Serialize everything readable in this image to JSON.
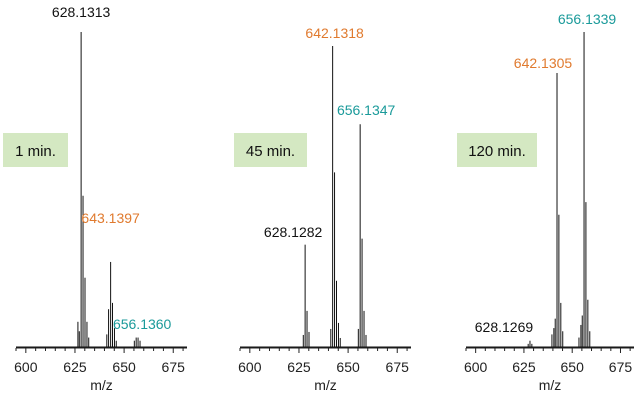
{
  "colors": {
    "spectrum": "#111111",
    "axis": "#222222",
    "peak_black": "#111111",
    "peak_orange": "#e07a2e",
    "peak_teal": "#1a9a9a",
    "time_box_fill": "#d4e8c2"
  },
  "chart_data": [
    {
      "type": "line",
      "time_label": "1 min.",
      "xlabel": "m/z",
      "xlim": [
        595,
        682
      ],
      "ylim": [
        0,
        1.0
      ],
      "xticks": [
        600,
        625,
        650,
        675
      ],
      "xtick_labels": [
        "600",
        "625",
        "650",
        "675"
      ],
      "peaks": [
        {
          "x": 626.5,
          "y": 0.08
        },
        {
          "x": 627.2,
          "y": 0.05
        },
        {
          "x": 628.13,
          "y": 1.0
        },
        {
          "x": 629.1,
          "y": 0.48
        },
        {
          "x": 630.1,
          "y": 0.22
        },
        {
          "x": 631.1,
          "y": 0.08
        },
        {
          "x": 632.0,
          "y": 0.03
        },
        {
          "x": 641.2,
          "y": 0.04
        },
        {
          "x": 642.1,
          "y": 0.12
        },
        {
          "x": 643.14,
          "y": 0.27
        },
        {
          "x": 644.1,
          "y": 0.14
        },
        {
          "x": 645.1,
          "y": 0.06
        },
        {
          "x": 646.0,
          "y": 0.02
        },
        {
          "x": 655.2,
          "y": 0.02
        },
        {
          "x": 656.14,
          "y": 0.03
        },
        {
          "x": 657.1,
          "y": 0.03
        },
        {
          "x": 658.1,
          "y": 0.02
        }
      ],
      "annotations": [
        {
          "text": "628.1313",
          "color": "black",
          "x": 628.13
        },
        {
          "text": "643.1397",
          "color": "orange",
          "x": 643.14
        },
        {
          "text": "656.1360",
          "color": "teal",
          "x": 656.14
        }
      ]
    },
    {
      "type": "line",
      "time_label": "45 min.",
      "xlabel": "m/z",
      "xlim": [
        595,
        682
      ],
      "ylim": [
        0,
        1.0
      ],
      "xticks": [
        600,
        625,
        650,
        675
      ],
      "xtick_labels": [
        "600",
        "625",
        "650",
        "675"
      ],
      "peaks": [
        {
          "x": 627.2,
          "y": 0.04
        },
        {
          "x": 628.13,
          "y": 0.34
        },
        {
          "x": 629.1,
          "y": 0.12
        },
        {
          "x": 630.1,
          "y": 0.05
        },
        {
          "x": 641.2,
          "y": 0.06
        },
        {
          "x": 642.13,
          "y": 1.0
        },
        {
          "x": 643.1,
          "y": 0.58
        },
        {
          "x": 644.1,
          "y": 0.22
        },
        {
          "x": 645.1,
          "y": 0.08
        },
        {
          "x": 646.0,
          "y": 0.03
        },
        {
          "x": 655.2,
          "y": 0.06
        },
        {
          "x": 656.13,
          "y": 0.74
        },
        {
          "x": 657.1,
          "y": 0.36
        },
        {
          "x": 658.1,
          "y": 0.12
        },
        {
          "x": 659.1,
          "y": 0.04
        }
      ],
      "annotations": [
        {
          "text": "642.1318",
          "color": "orange",
          "x": 642.13
        },
        {
          "text": "656.1347",
          "color": "teal",
          "x": 656.13
        },
        {
          "text": "628.1282",
          "color": "black",
          "x": 628.13
        }
      ]
    },
    {
      "type": "line",
      "time_label": "120 min.",
      "xlabel": "m/z",
      "xlim": [
        595,
        682
      ],
      "ylim": [
        0,
        1.0
      ],
      "xticks": [
        600,
        625,
        650,
        675
      ],
      "xtick_labels": [
        "600",
        "625",
        "650",
        "675"
      ],
      "peaks": [
        {
          "x": 627.2,
          "y": 0.01
        },
        {
          "x": 628.13,
          "y": 0.02
        },
        {
          "x": 629.1,
          "y": 0.01
        },
        {
          "x": 639.5,
          "y": 0.04
        },
        {
          "x": 640.5,
          "y": 0.06
        },
        {
          "x": 641.2,
          "y": 0.09
        },
        {
          "x": 642.13,
          "y": 0.87
        },
        {
          "x": 643.1,
          "y": 0.42
        },
        {
          "x": 644.1,
          "y": 0.14
        },
        {
          "x": 645.1,
          "y": 0.05
        },
        {
          "x": 653.5,
          "y": 0.03
        },
        {
          "x": 654.5,
          "y": 0.07
        },
        {
          "x": 655.2,
          "y": 0.1
        },
        {
          "x": 656.13,
          "y": 1.0
        },
        {
          "x": 657.1,
          "y": 0.46
        },
        {
          "x": 658.1,
          "y": 0.15
        },
        {
          "x": 659.1,
          "y": 0.05
        }
      ],
      "annotations": [
        {
          "text": "656.1339",
          "color": "teal",
          "x": 656.13
        },
        {
          "text": "642.1305",
          "color": "orange",
          "x": 642.13
        },
        {
          "text": "628.1269",
          "color": "black",
          "x": 628.13
        }
      ]
    }
  ]
}
